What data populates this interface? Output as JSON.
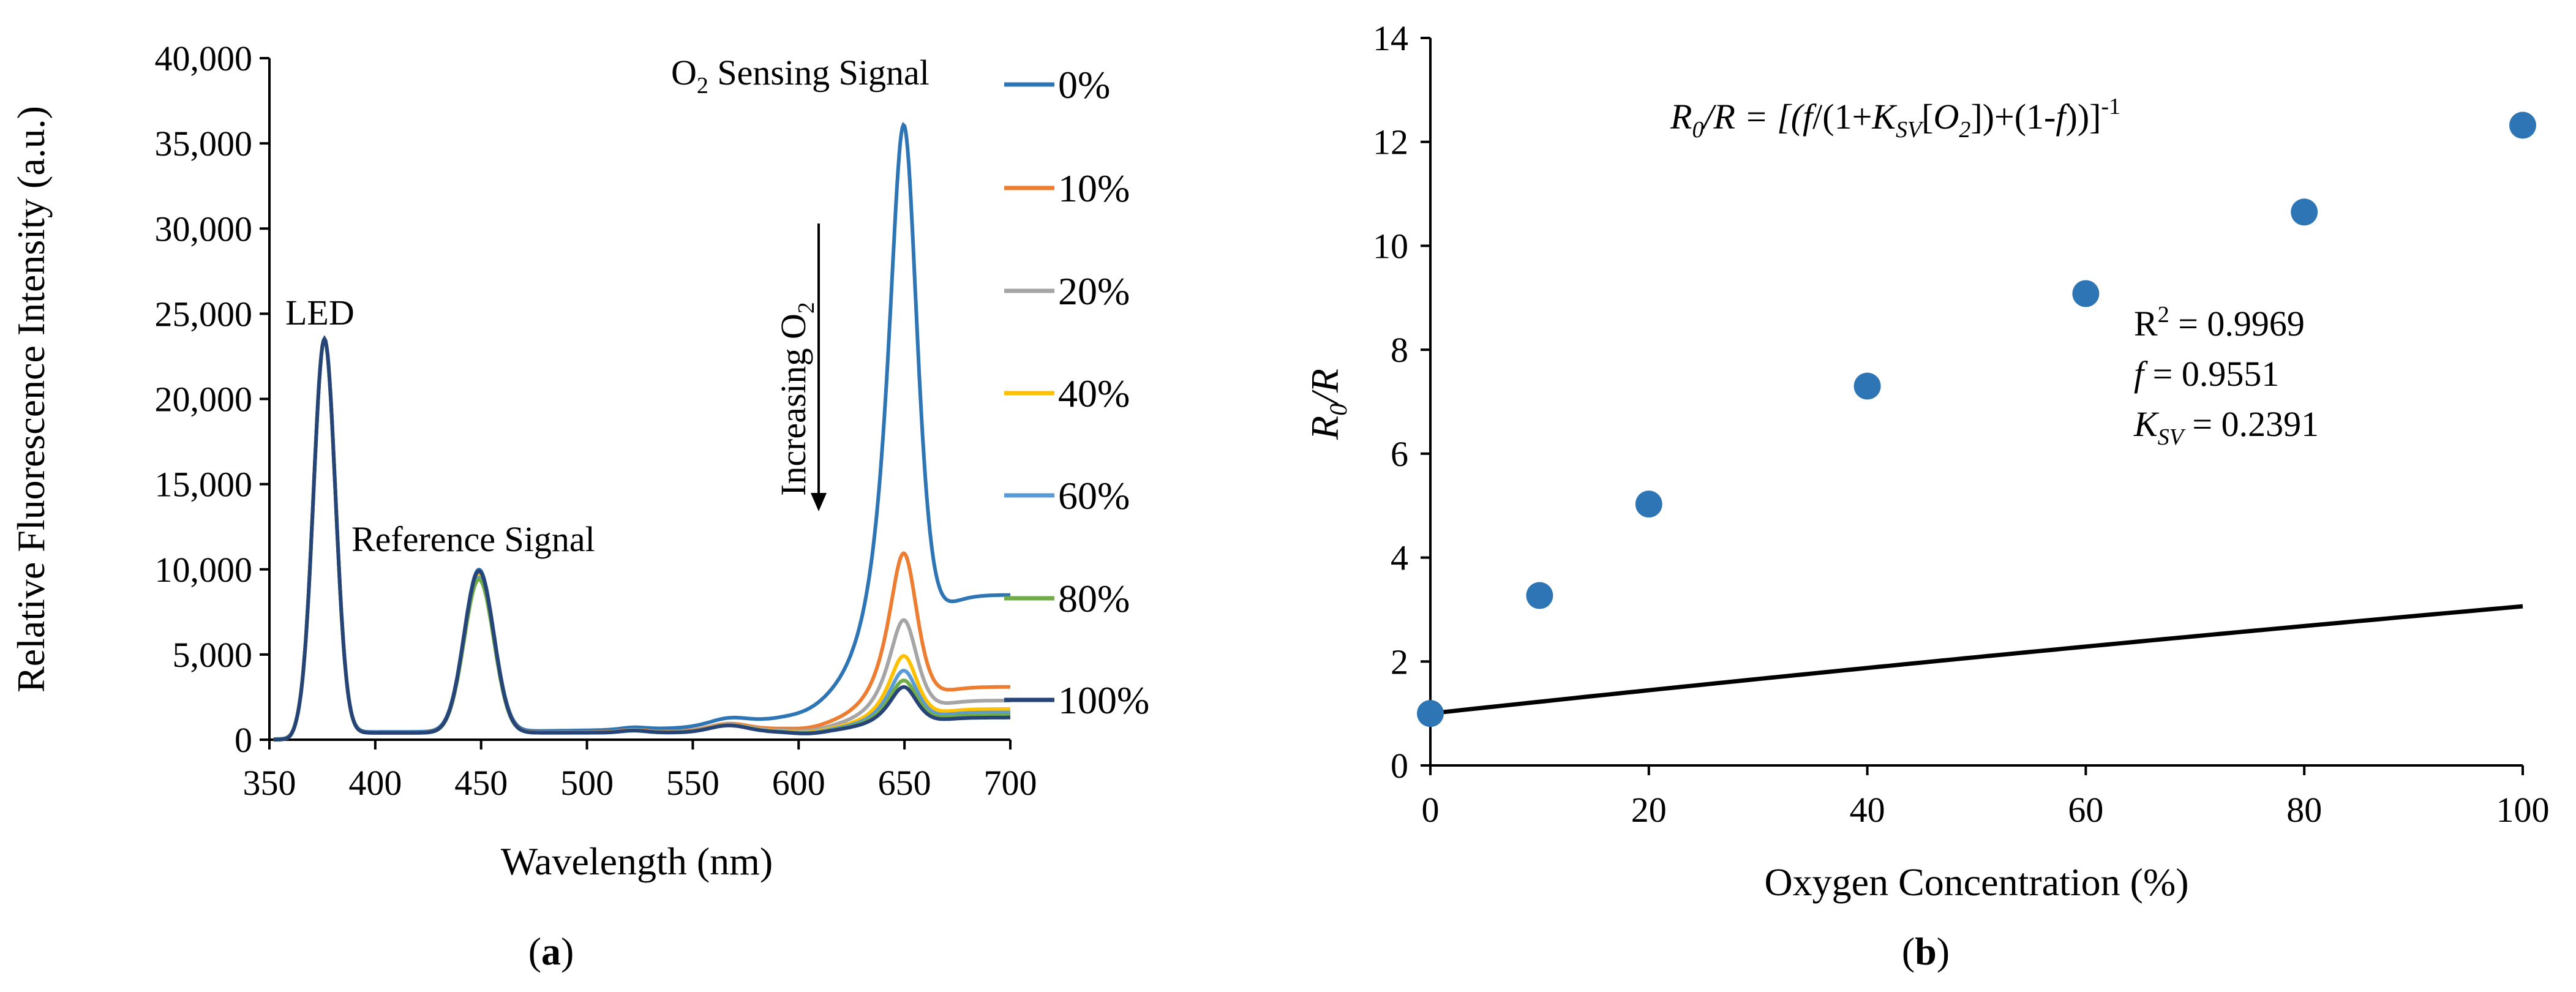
{
  "chart_data": [
    {
      "panel": "(a)",
      "panel_label_open": "(",
      "panel_label_letter": "a",
      "panel_label_close": ")",
      "type": "line",
      "title": "",
      "xlabel": "Wavelength (nm)",
      "ylabel": "Relative Fluorescence Intensity (a.u.)",
      "xlim": [
        350,
        700
      ],
      "ylim": [
        0,
        40000
      ],
      "xticks": [
        350,
        400,
        450,
        500,
        550,
        600,
        650,
        700
      ],
      "xtick_labels": [
        "350",
        "400",
        "450",
        "500",
        "550",
        "600",
        "650",
        "700"
      ],
      "yticks": [
        0,
        5000,
        10000,
        15000,
        20000,
        25000,
        30000,
        35000,
        40000
      ],
      "ytick_labels": [
        "0",
        "5,000",
        "10,000",
        "15,000",
        "20,000",
        "25,000",
        "30,000",
        "35,000",
        "40,000"
      ],
      "grid": false,
      "legend_position": "right",
      "annotations": {
        "led": "LED",
        "reference": "Reference Signal",
        "sensing_prefix": "O",
        "sensing_sub": "2",
        "sensing_suffix": " Sensing Signal",
        "increasing": "Increasing  O",
        "increasing_sub": "2"
      },
      "series": [
        {
          "name": "0%",
          "color": "#2E75B6",
          "red_peak": 37700,
          "red_tail": 8500,
          "ref_peak": 10000
        },
        {
          "name": "10%",
          "color": "#ED7D31",
          "red_peak": 11400,
          "red_tail": 3100,
          "ref_peak": 9900
        },
        {
          "name": "20%",
          "color": "#A5A5A5",
          "red_peak": 7300,
          "red_tail": 2300,
          "ref_peak": 9800
        },
        {
          "name": "40%",
          "color": "#FFC000",
          "red_peak": 5100,
          "red_tail": 1800,
          "ref_peak": 9700
        },
        {
          "name": "60%",
          "color": "#5B9BD5",
          "red_peak": 4200,
          "red_tail": 1600,
          "ref_peak": 9600
        },
        {
          "name": "80%",
          "color": "#70AD47",
          "red_peak": 3600,
          "red_tail": 1450,
          "ref_peak": 9500
        },
        {
          "name": "100%",
          "color": "#264478",
          "red_peak": 3200,
          "red_tail": 1300,
          "ref_peak": 10000
        }
      ],
      "led_peak": {
        "x": 376,
        "y": 23500
      },
      "ref_peak_x": 449,
      "red_peak_x": 650
    },
    {
      "panel": "(b)",
      "panel_label_open": "(",
      "panel_label_letter": "b",
      "panel_label_close": ")",
      "type": "scatter",
      "title": "",
      "xlabel": "Oxygen Concentration (%)",
      "ylabel_main": "R",
      "ylabel_sub": "0",
      "ylabel_tail": "/R",
      "xlim": [
        0,
        100
      ],
      "ylim": [
        0,
        14
      ],
      "xticks": [
        0,
        20,
        40,
        60,
        80,
        100
      ],
      "xtick_labels": [
        "0",
        "20",
        "40",
        "60",
        "80",
        "100"
      ],
      "yticks": [
        0,
        2,
        4,
        6,
        8,
        10,
        12,
        14
      ],
      "ytick_labels": [
        "0",
        "2",
        "4",
        "6",
        "8",
        "10",
        "12",
        "14"
      ],
      "grid": false,
      "marker_color": "#2E75B6",
      "fit_color": "#000000",
      "points": {
        "x": [
          0,
          10,
          20,
          40,
          60,
          80,
          100
        ],
        "y": [
          1.0,
          3.27,
          5.03,
          7.3,
          9.08,
          10.65,
          12.32
        ]
      },
      "fit": {
        "f": 0.9551,
        "Ksv": 0.2391,
        "r2": 0.9969
      },
      "equation": {
        "p1": "R",
        "s1": "0",
        "p2": "/R = [(",
        "p3": "f",
        "p4": "/(1+",
        "p5": "K",
        "s2": "SV",
        "p6": "[",
        "p7": "O",
        "s3": "2",
        "p8": "])+(1-",
        "p9": "f",
        "p10": "))]",
        "sup": "-1"
      },
      "stats": {
        "r2_prefix": "R",
        "r2_sup": "2",
        "r2_value": " = 0.9969",
        "f_symbol": "f",
        "f_value": " = 0.9551",
        "k_symbol": "K",
        "k_sub": "SV",
        "k_value": " = 0.2391"
      }
    }
  ]
}
